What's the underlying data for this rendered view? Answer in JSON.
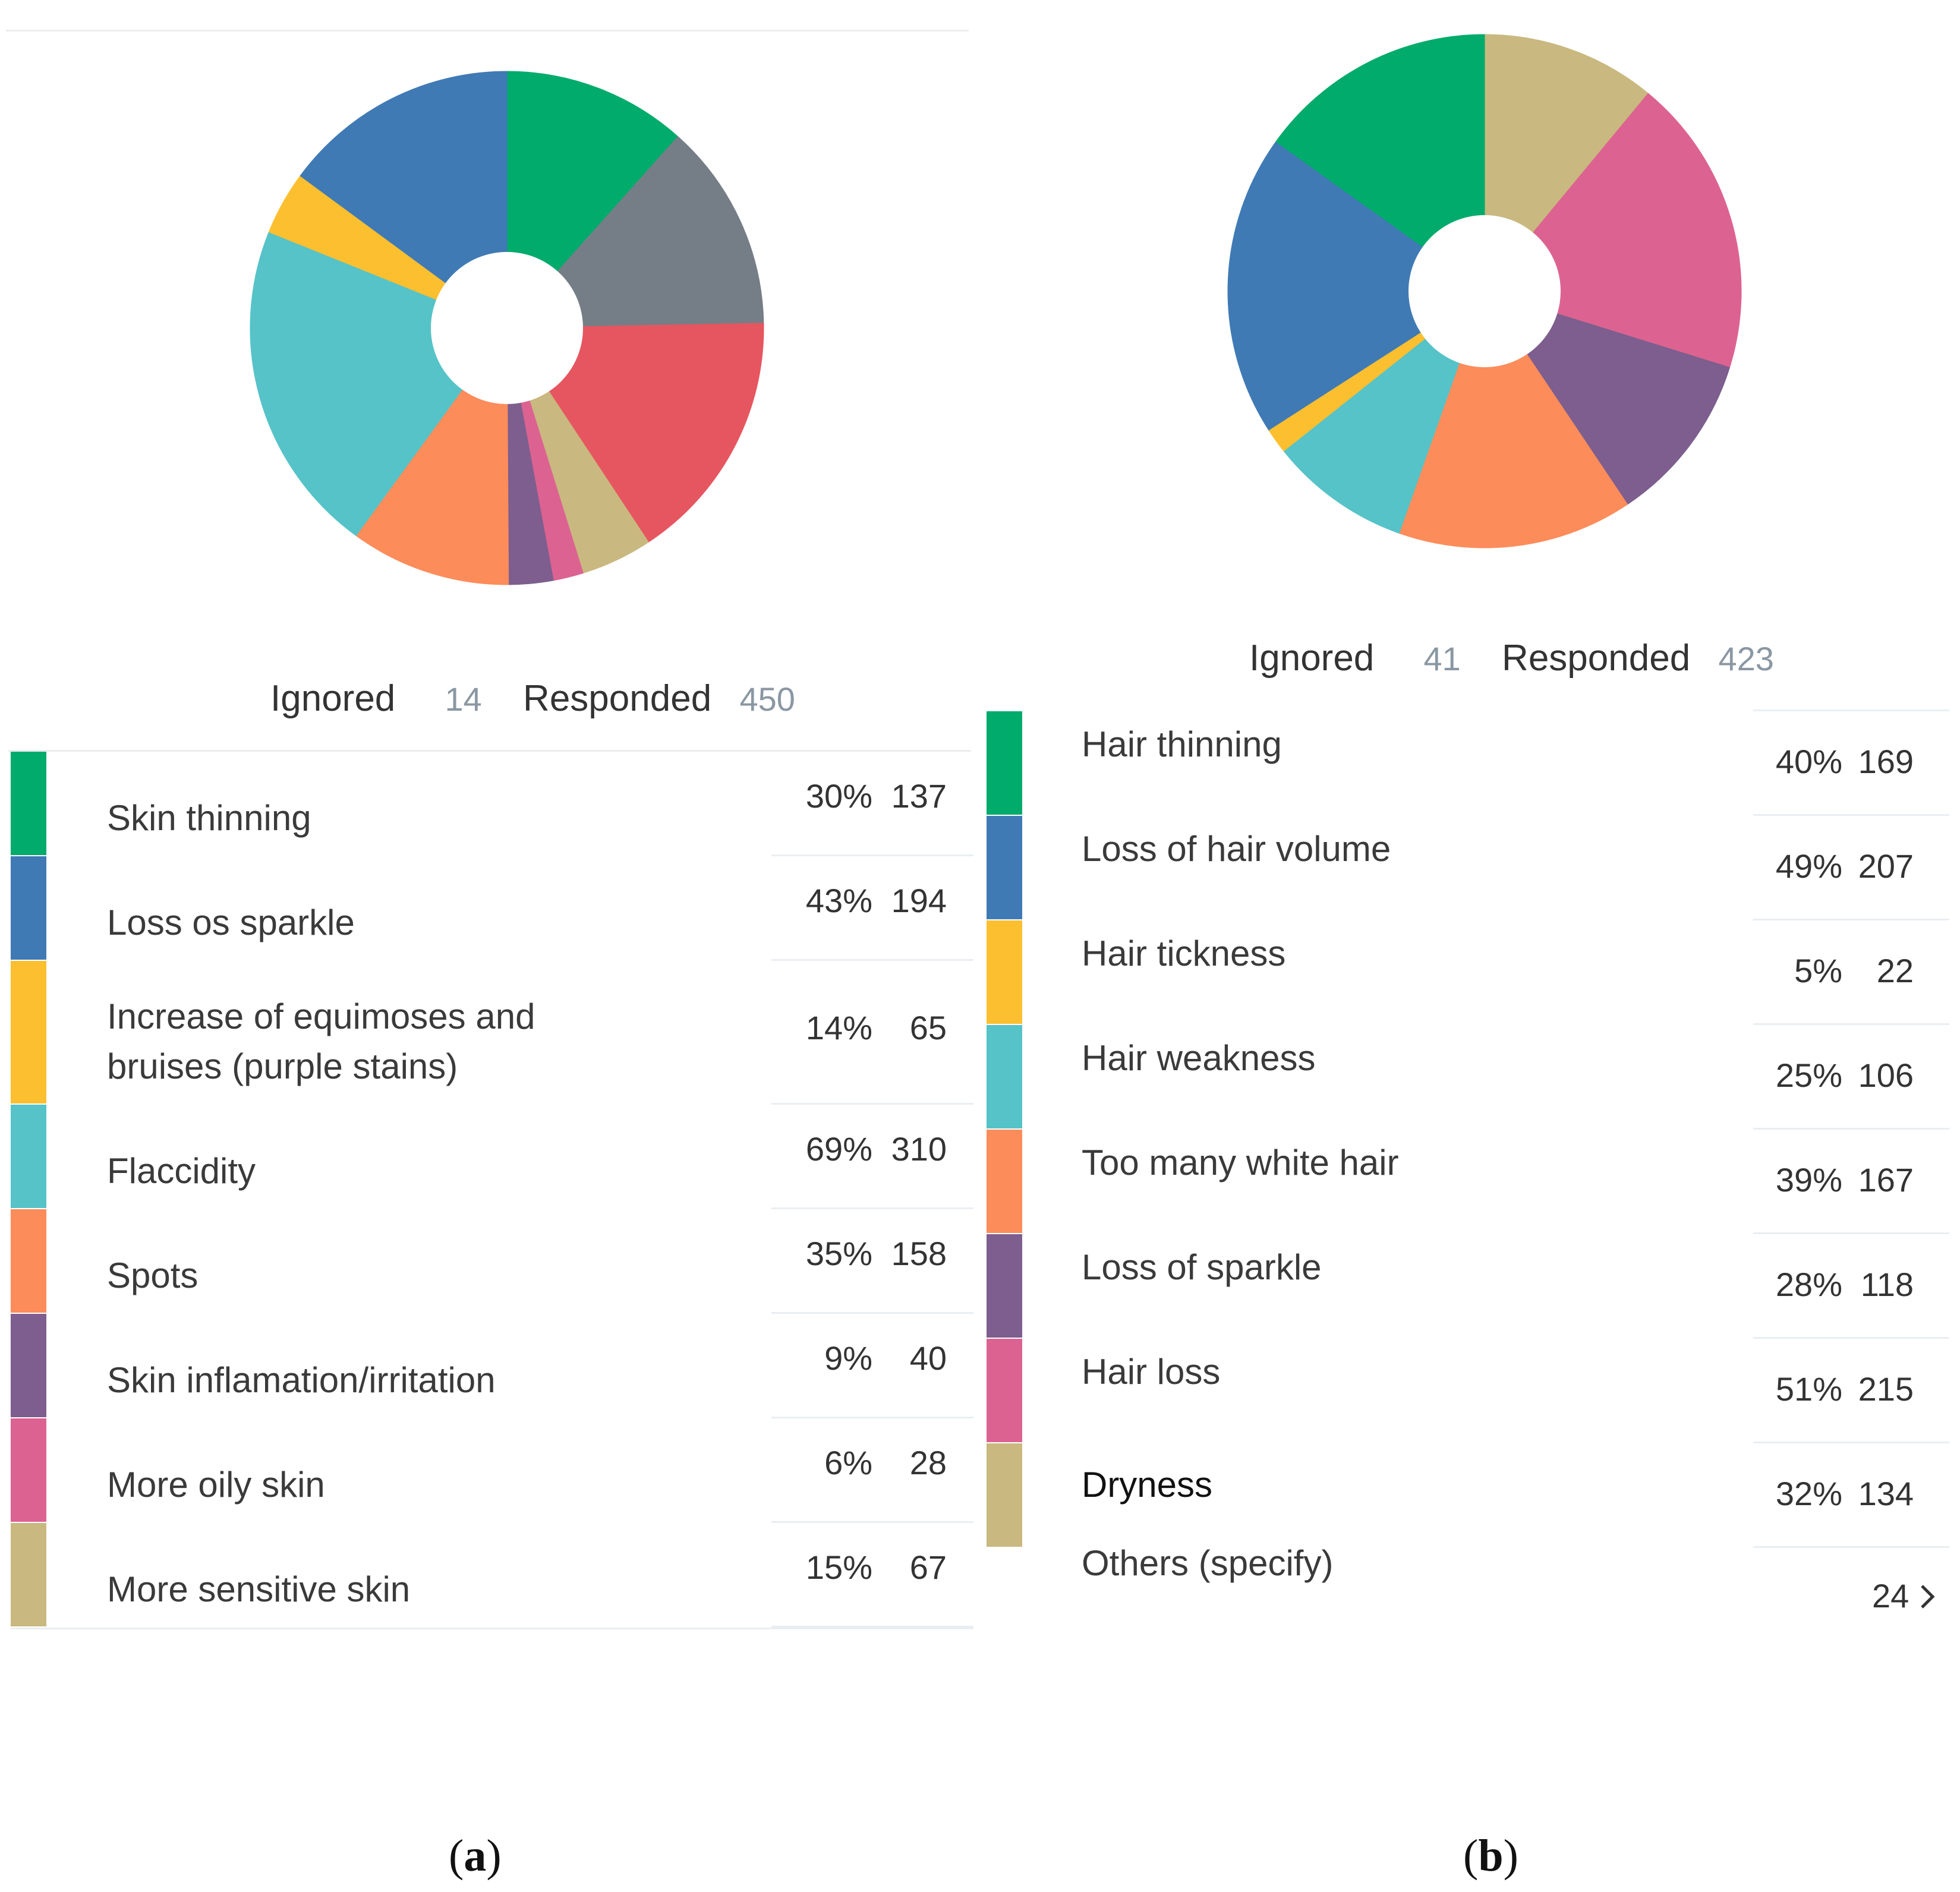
{
  "chart_data": [
    {
      "type": "pie",
      "title": "(a)",
      "caption_letter": "a",
      "summary": {
        "ignored_label": "Ignored",
        "ignored": "14",
        "responded_label": "Responded",
        "responded": "450"
      },
      "categories": [
        "Skin thinning",
        "Loss os sparkle",
        "Increase of equimoses and bruises (purple stains)",
        "Flaccidity",
        "Spots",
        "Skin inflamation/irritation",
        "More oily skin",
        "More sensitive skin"
      ],
      "label_lines": [
        [
          "Skin thinning"
        ],
        [
          "Loss os sparkle"
        ],
        [
          "Increase of equimoses and",
          "bruises (purple stains)"
        ],
        [
          "Flaccidity"
        ],
        [
          "Spots"
        ],
        [
          "Skin inflamation/irritation"
        ],
        [
          "More oily skin"
        ],
        [
          "More sensitive skin"
        ]
      ],
      "percents": [
        "30%",
        "43%",
        "14%",
        "69%",
        "35%",
        "9%",
        "6%",
        "15%"
      ],
      "values": [
        137,
        194,
        65,
        310,
        158,
        40,
        28,
        67
      ],
      "colors": [
        "#00ab6b",
        "#3f7ab5",
        "#fcbf30",
        "#55c3c8",
        "#fd8c5b",
        "#7d5e8e",
        "#dc6391",
        "#c9b87f"
      ],
      "pie_slices": [
        {
          "name": "green",
          "value": 11.6,
          "color": "#00ab6b"
        },
        {
          "name": "gray",
          "value": 13.1,
          "color": "#757e86"
        },
        {
          "name": "red",
          "value": 16.0,
          "color": "#e65660"
        },
        {
          "name": "tan",
          "value": 4.5,
          "color": "#c9b87f"
        },
        {
          "name": "pink",
          "value": 1.9,
          "color": "#dc6391"
        },
        {
          "name": "purple",
          "value": 2.8,
          "color": "#7d5e8e"
        },
        {
          "name": "orange",
          "value": 10.1,
          "color": "#fd8c5b"
        },
        {
          "name": "teal",
          "value": 21.1,
          "color": "#55c3c8"
        },
        {
          "name": "yellow",
          "value": 4.0,
          "color": "#fcbf30"
        },
        {
          "name": "blue",
          "value": 14.9,
          "color": "#3f7ab5"
        }
      ]
    },
    {
      "type": "pie",
      "title": "(b)",
      "caption_letter": "b",
      "summary": {
        "ignored_label": "Ignored",
        "ignored": "41",
        "responded_label": "Responded",
        "responded": "423"
      },
      "categories": [
        "Hair thinning",
        "Loss of hair volume",
        "Hair tickness",
        "Hair weakness",
        "Too many white hair",
        "Loss of sparkle",
        "Hair loss",
        "Dryness"
      ],
      "label_lines": [
        [
          "Hair thinning"
        ],
        [
          "Loss of hair volume"
        ],
        [
          "Hair tickness"
        ],
        [
          "Hair weakness"
        ],
        [
          "Too many white hair"
        ],
        [
          "Loss of sparkle"
        ],
        [
          "Hair loss"
        ],
        [
          "Dryness"
        ]
      ],
      "extra_label": "Others (specify)",
      "percents": [
        "40%",
        "49%",
        "5%",
        "25%",
        "39%",
        "28%",
        "51%",
        "32%"
      ],
      "values": [
        169,
        207,
        22,
        106,
        167,
        118,
        215,
        134
      ],
      "pager_value": "24",
      "colors": [
        "#00ab6b",
        "#3f7ab5",
        "#fcbf30",
        "#55c3c8",
        "#fd8c5b",
        "#7d5e8e",
        "#dc6391",
        "#c9b87f"
      ],
      "pie_slices": [
        {
          "name": "tan",
          "value": 11.0,
          "color": "#c9b87f"
        },
        {
          "name": "pink",
          "value": 18.8,
          "color": "#dc6391"
        },
        {
          "name": "purple",
          "value": 10.8,
          "color": "#7d5e8e"
        },
        {
          "name": "orange",
          "value": 14.8,
          "color": "#fd8c5b"
        },
        {
          "name": "teal",
          "value": 8.9,
          "color": "#55c3c8"
        },
        {
          "name": "yellow",
          "value": 1.6,
          "color": "#fcbf30"
        },
        {
          "name": "blue",
          "value": 19.0,
          "color": "#3f7ab5"
        },
        {
          "name": "green",
          "value": 15.1,
          "color": "#00ab6b"
        }
      ]
    }
  ]
}
